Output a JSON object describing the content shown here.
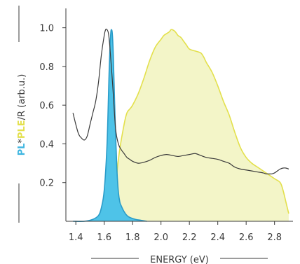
{
  "chart_data": {
    "type": "area",
    "xlabel": "ENERGY (eV)",
    "ylabel_parts": [
      {
        "text": "PL",
        "color": "#3fb6e0",
        "bold": true
      },
      {
        "text": "*",
        "color": "#3a3a3a",
        "bold": false
      },
      {
        "text": "PLE",
        "color": "#e3e04c",
        "bold": true
      },
      {
        "text": "/R (arb.u.)",
        "color": "#3a3a3a",
        "bold": false
      }
    ],
    "xlim": [
      1.33,
      2.93
    ],
    "ylim": [
      0.0,
      1.1
    ],
    "xticks": [
      1.4,
      1.6,
      1.8,
      2.0,
      2.2,
      2.4,
      2.6,
      2.8
    ],
    "xtick_labels": [
      "1.4",
      "1.6",
      "1.8",
      "2.0",
      "2.2",
      "2.4",
      "2.6",
      "2.8"
    ],
    "yticks": [
      0.2,
      0.4,
      0.6,
      0.8,
      1.0
    ],
    "ytick_labels": [
      "0.2",
      "0.4",
      "0.6",
      "0.8",
      "1.0"
    ],
    "series": [
      {
        "name": "PLE",
        "kind": "area",
        "fill": "#f3f5c8",
        "stroke": "#e3e04c",
        "x": [
          1.66,
          1.7,
          1.74,
          1.76,
          1.78,
          1.8,
          1.84,
          1.88,
          1.92,
          1.96,
          2.0,
          2.02,
          2.04,
          2.06,
          2.07,
          2.08,
          2.1,
          2.12,
          2.14,
          2.16,
          2.18,
          2.2,
          2.24,
          2.28,
          2.3,
          2.32,
          2.36,
          2.4,
          2.44,
          2.48,
          2.52,
          2.56,
          2.6,
          2.64,
          2.68,
          2.72,
          2.76,
          2.8,
          2.84,
          2.86,
          2.88,
          2.9
        ],
        "y": [
          0.0,
          0.32,
          0.5,
          0.56,
          0.58,
          0.6,
          0.66,
          0.74,
          0.83,
          0.9,
          0.94,
          0.96,
          0.97,
          0.98,
          0.99,
          0.99,
          0.98,
          0.96,
          0.95,
          0.93,
          0.91,
          0.89,
          0.88,
          0.87,
          0.85,
          0.82,
          0.77,
          0.7,
          0.62,
          0.55,
          0.46,
          0.38,
          0.33,
          0.3,
          0.28,
          0.26,
          0.24,
          0.22,
          0.2,
          0.16,
          0.1,
          0.04
        ]
      },
      {
        "name": "PL",
        "kind": "area",
        "fill": "#4ec3e8",
        "stroke": "#2a9cc9",
        "x": [
          1.38,
          1.46,
          1.52,
          1.56,
          1.58,
          1.6,
          1.62,
          1.635,
          1.645,
          1.652,
          1.658,
          1.664,
          1.67,
          1.68,
          1.69,
          1.7,
          1.71,
          1.72,
          1.74,
          1.76,
          1.78,
          1.82,
          1.86,
          1.9
        ],
        "y": [
          0.0,
          0.0,
          0.01,
          0.03,
          0.07,
          0.16,
          0.4,
          0.78,
          0.96,
          0.99,
          0.96,
          0.86,
          0.7,
          0.45,
          0.26,
          0.15,
          0.1,
          0.08,
          0.05,
          0.03,
          0.02,
          0.01,
          0.005,
          0.0
        ]
      },
      {
        "name": "R",
        "kind": "line",
        "stroke": "#3a3a3a",
        "x": [
          1.38,
          1.4,
          1.42,
          1.44,
          1.46,
          1.48,
          1.5,
          1.52,
          1.54,
          1.56,
          1.58,
          1.6,
          1.61,
          1.62,
          1.63,
          1.64,
          1.66,
          1.68,
          1.7,
          1.72,
          1.74,
          1.76,
          1.78,
          1.8,
          1.84,
          1.88,
          1.92,
          1.96,
          2.0,
          2.04,
          2.08,
          2.12,
          2.16,
          2.2,
          2.24,
          2.28,
          2.32,
          2.36,
          2.4,
          2.44,
          2.48,
          2.52,
          2.56,
          2.6,
          2.64,
          2.68,
          2.72,
          2.74,
          2.76,
          2.78,
          2.8,
          2.82,
          2.84,
          2.86,
          2.88,
          2.9
        ],
        "y": [
          0.56,
          0.5,
          0.45,
          0.43,
          0.42,
          0.44,
          0.5,
          0.56,
          0.62,
          0.72,
          0.86,
          0.96,
          0.99,
          0.99,
          0.97,
          0.9,
          0.7,
          0.48,
          0.4,
          0.37,
          0.35,
          0.33,
          0.32,
          0.31,
          0.3,
          0.305,
          0.315,
          0.33,
          0.34,
          0.345,
          0.34,
          0.335,
          0.34,
          0.345,
          0.35,
          0.34,
          0.33,
          0.325,
          0.32,
          0.31,
          0.3,
          0.28,
          0.27,
          0.265,
          0.26,
          0.255,
          0.25,
          0.245,
          0.245,
          0.245,
          0.25,
          0.26,
          0.27,
          0.275,
          0.275,
          0.27
        ]
      }
    ]
  }
}
